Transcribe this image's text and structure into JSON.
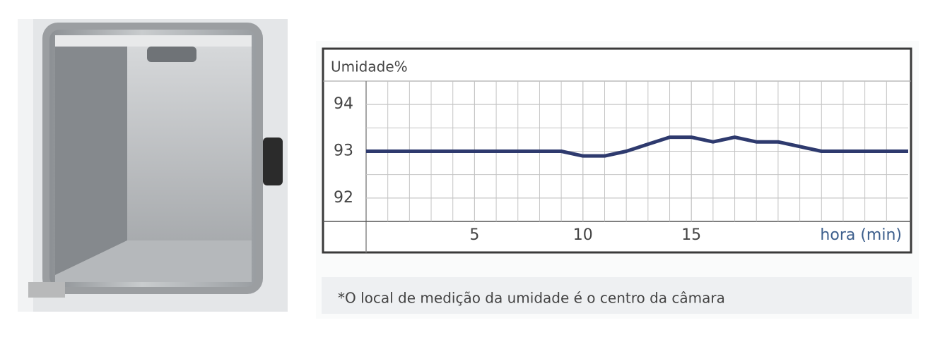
{
  "chart_data": {
    "type": "line",
    "y_label": "Umidade%",
    "x_label": "hora (min)",
    "note": "*O local de medição da umidade é o centro da câmara",
    "x": [
      0,
      9,
      10,
      11,
      12,
      13,
      14,
      15,
      16,
      17,
      18,
      19,
      20,
      21,
      25
    ],
    "series": [
      {
        "color": "#2e3a6e",
        "values": [
          93,
          93,
          92.9,
          92.9,
          93,
          93.15,
          93.3,
          93.3,
          93.2,
          93.3,
          93.2,
          93.2,
          93.1,
          93,
          93
        ]
      }
    ],
    "xlim": [
      0,
      25
    ],
    "xticks": [
      5,
      10,
      15
    ],
    "ylim": [
      91.5,
      94.5
    ],
    "yticks": [
      92,
      93,
      94
    ],
    "grid": true
  }
}
